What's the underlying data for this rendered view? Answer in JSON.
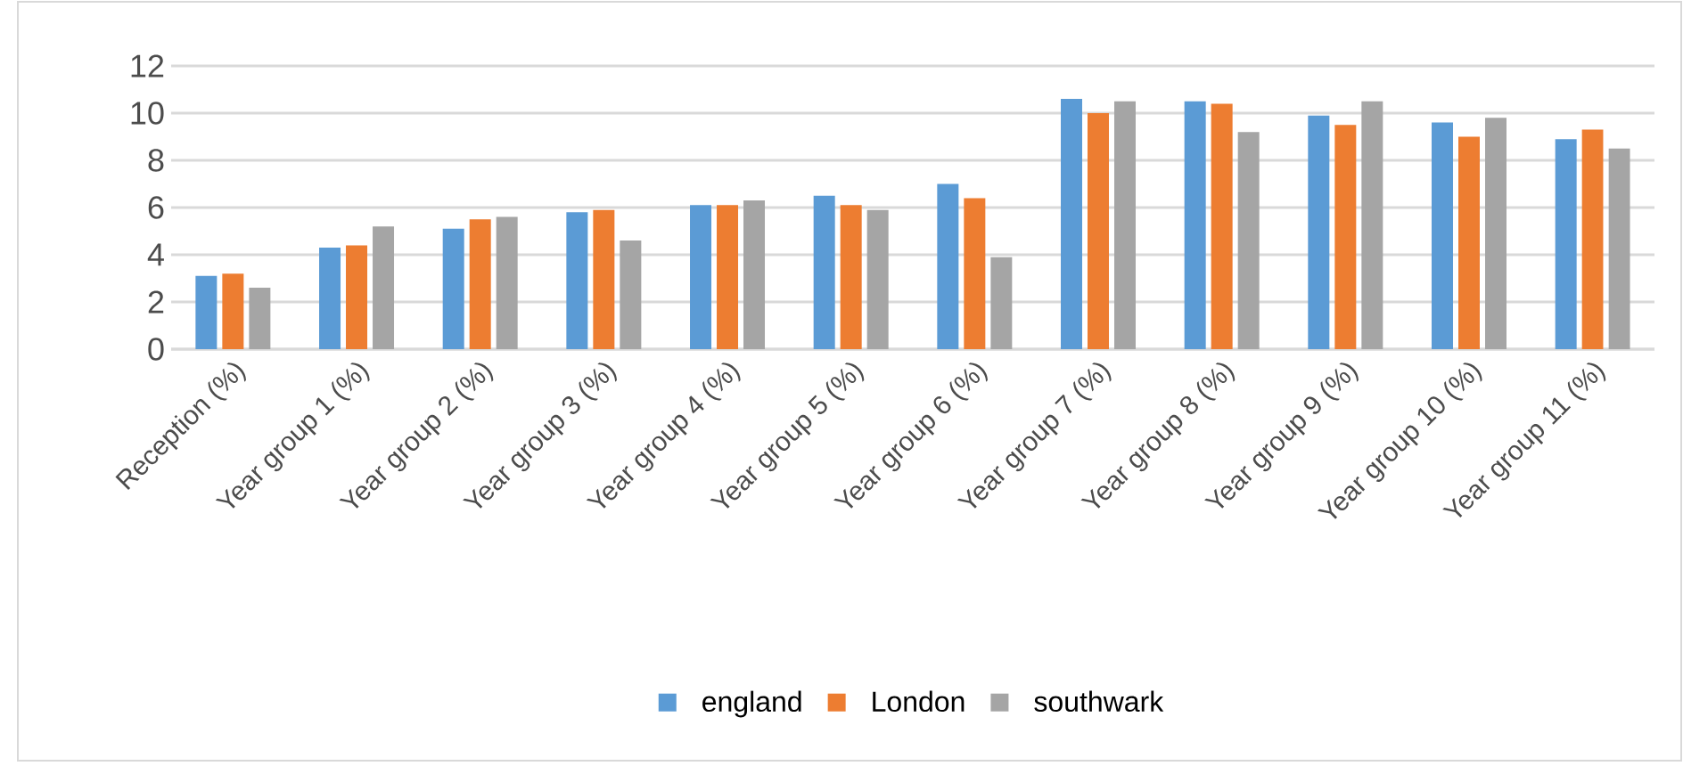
{
  "chart_data": {
    "type": "bar",
    "categories": [
      "Reception (%)",
      "Year group 1 (%)",
      "Year group 2 (%)",
      "Year group 3 (%)",
      "Year group 4 (%)",
      "Year group 5 (%)",
      "Year group 6 (%)",
      "Year group 7 (%)",
      "Year group 8 (%)",
      "Year group 9 (%)",
      "Year group 10 (%)",
      "Year group 11 (%)"
    ],
    "series": [
      {
        "name": "england",
        "color": "#5b9bd5",
        "values": [
          3.1,
          4.3,
          5.1,
          5.8,
          6.1,
          6.5,
          7.0,
          10.6,
          10.5,
          9.9,
          9.6,
          8.9
        ]
      },
      {
        "name": "London",
        "color": "#ed7d31",
        "values": [
          3.2,
          4.4,
          5.5,
          5.9,
          6.1,
          6.1,
          6.4,
          10.0,
          10.4,
          9.5,
          9.0,
          9.3
        ]
      },
      {
        "name": "southwark",
        "color": "#a5a5a5",
        "values": [
          2.6,
          5.2,
          5.6,
          4.6,
          6.3,
          5.9,
          3.9,
          10.5,
          9.2,
          10.5,
          9.8,
          8.5
        ]
      }
    ],
    "ylim": [
      0,
      12
    ],
    "yticks": [
      0,
      2,
      4,
      6,
      8,
      10,
      12
    ],
    "grid": "y",
    "legend": "bottom"
  }
}
